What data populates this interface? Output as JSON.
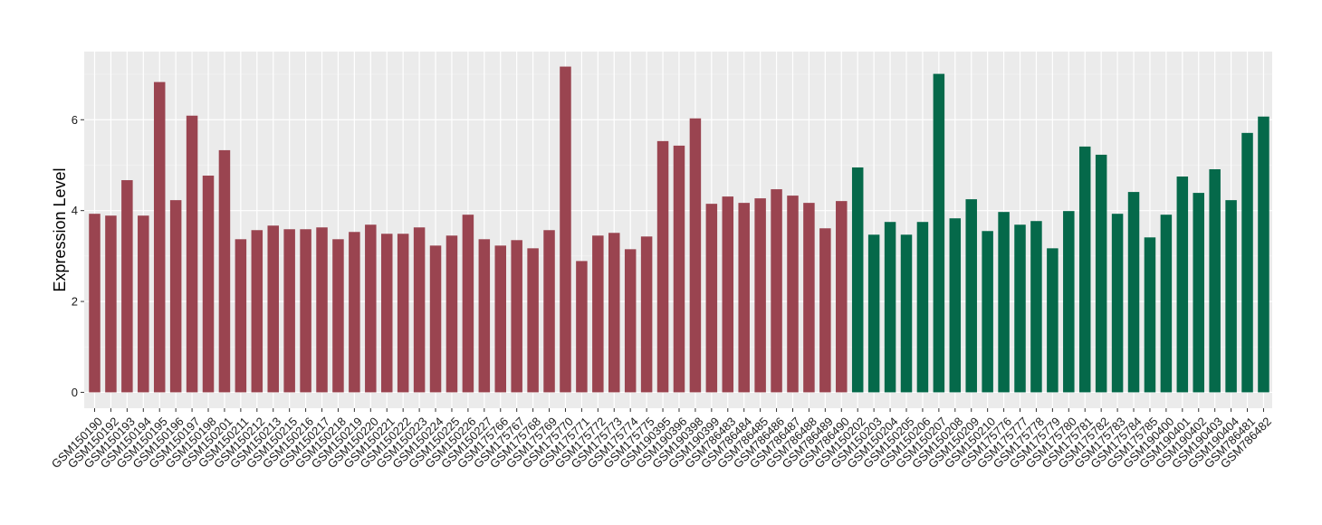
{
  "chart_data": {
    "type": "bar",
    "ylabel": "Expression Level",
    "xlabel": "",
    "ylim": [
      -0.35,
      7.5
    ],
    "yticks": [
      0,
      2,
      4,
      6
    ],
    "grid": true,
    "panel_background": "#ebebeb",
    "categories": [
      "GSM150190",
      "GSM150192",
      "GSM150193",
      "GSM150194",
      "GSM150195",
      "GSM150196",
      "GSM150197",
      "GSM150198",
      "GSM150201",
      "GSM150211",
      "GSM150212",
      "GSM150213",
      "GSM150215",
      "GSM150216",
      "GSM150217",
      "GSM150218",
      "GSM150219",
      "GSM150220",
      "GSM150221",
      "GSM150222",
      "GSM150223",
      "GSM150224",
      "GSM150225",
      "GSM150226",
      "GSM150227",
      "GSM175766",
      "GSM175767",
      "GSM175768",
      "GSM175769",
      "GSM175770",
      "GSM175771",
      "GSM175772",
      "GSM175773",
      "GSM175774",
      "GSM175775",
      "GSM190395",
      "GSM190396",
      "GSM190398",
      "GSM190399",
      "GSM786483",
      "GSM786484",
      "GSM786485",
      "GSM786486",
      "GSM786487",
      "GSM786488",
      "GSM786489",
      "GSM786490",
      "GSM150202",
      "GSM150203",
      "GSM150204",
      "GSM150205",
      "GSM150206",
      "GSM150207",
      "GSM150208",
      "GSM150209",
      "GSM150210",
      "GSM175776",
      "GSM175777",
      "GSM175778",
      "GSM175779",
      "GSM175780",
      "GSM175781",
      "GSM175782",
      "GSM175783",
      "GSM175784",
      "GSM175785",
      "GSM190400",
      "GSM190401",
      "GSM190402",
      "GSM190403",
      "GSM190404",
      "GSM786481",
      "GSM786482"
    ],
    "values": [
      3.93,
      3.89,
      4.67,
      3.89,
      6.83,
      4.23,
      6.09,
      4.77,
      5.33,
      3.37,
      3.57,
      3.67,
      3.59,
      3.59,
      3.63,
      3.37,
      3.53,
      3.69,
      3.49,
      3.49,
      3.63,
      3.23,
      3.45,
      3.91,
      3.37,
      3.23,
      3.35,
      3.17,
      3.57,
      7.17,
      2.89,
      3.45,
      3.51,
      3.15,
      3.43,
      5.53,
      5.43,
      6.03,
      4.15,
      4.31,
      4.17,
      4.27,
      4.47,
      4.33,
      4.17,
      3.61,
      4.21,
      4.95,
      3.47,
      3.75,
      3.47,
      3.75,
      7.01,
      3.83,
      4.25,
      3.55,
      3.97,
      3.69,
      3.77,
      3.17,
      3.99,
      5.41,
      5.23,
      3.93,
      4.41,
      3.41,
      3.91,
      4.75,
      4.39,
      4.91,
      4.23,
      5.71,
      6.07
    ],
    "groups": [
      {
        "start": 0,
        "end": 46,
        "color": "#9a4450"
      },
      {
        "start": 47,
        "end": 72,
        "color": "#05694a"
      }
    ]
  }
}
